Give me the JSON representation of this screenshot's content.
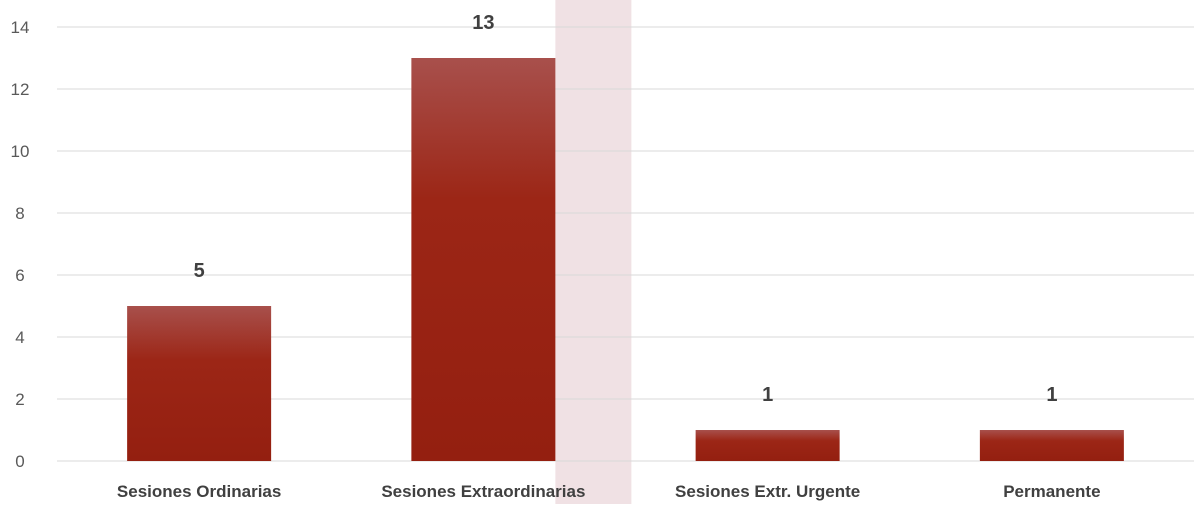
{
  "chart_data": {
    "type": "bar",
    "title": "",
    "xlabel": "",
    "ylabel": "",
    "categories": [
      "Sesiones Ordinarias",
      "Sesiones Extraordinarias",
      "Sesiones Extr. Urgente",
      "Permanente"
    ],
    "values": [
      5,
      13,
      1,
      1
    ],
    "data_labels": [
      "5",
      "13",
      "1",
      "1"
    ],
    "yticks": [
      "0",
      "2",
      "4",
      "6",
      "8",
      "10",
      "12",
      "14"
    ],
    "ylim": [
      0,
      14
    ],
    "grid": true,
    "legend": "none",
    "highlighted_category_index": 1,
    "colors": {
      "bar_top": "#a8504c",
      "bar_mid": "#9c2616",
      "bar_bottom": "#941f10",
      "highlight_band": "#f0e1e4",
      "gridline": "#d9d9d9",
      "tick_text": "#595959",
      "label_text": "#404040"
    }
  }
}
